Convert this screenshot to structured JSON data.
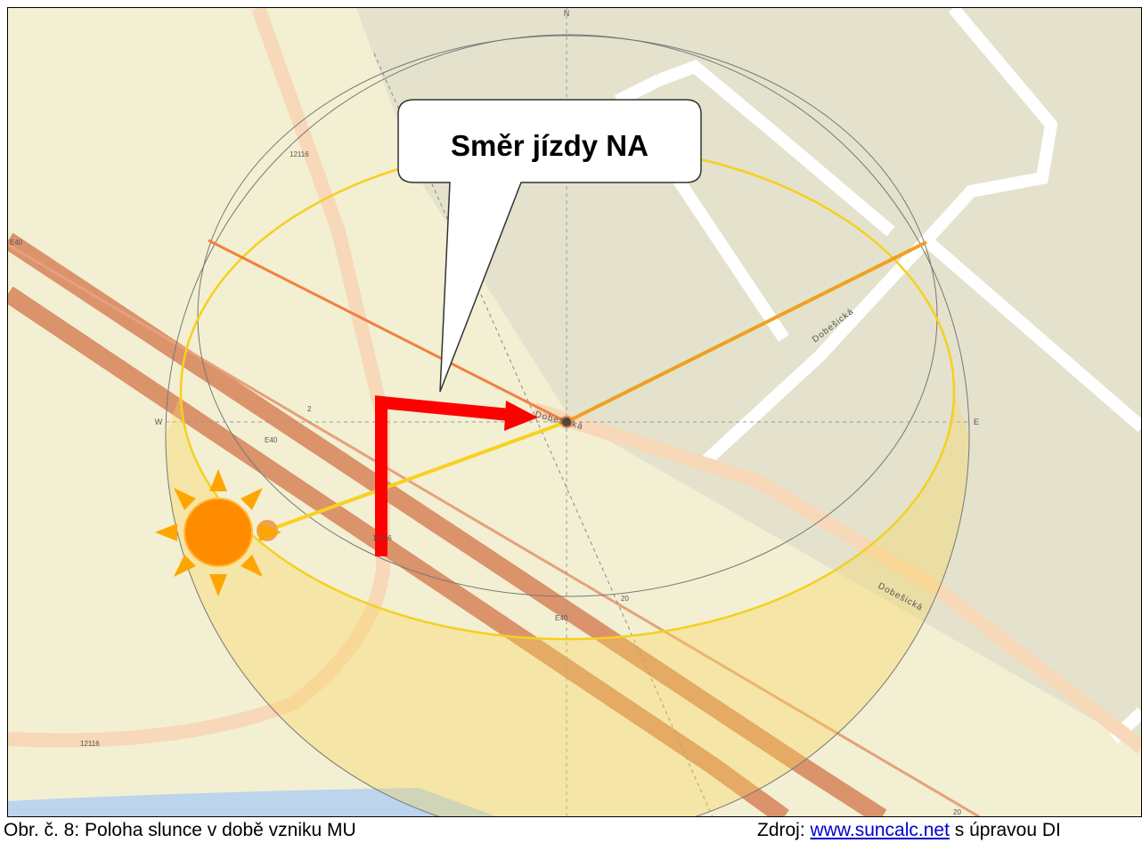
{
  "map": {
    "compass": {
      "n": "N",
      "w": "W",
      "e": "E"
    },
    "callout": "Směr jízdy NA",
    "street_labels": [
      "Dobešická",
      "Dobešická",
      "Dobešická"
    ],
    "road_labels": [
      "12116",
      "12116",
      "12116",
      "E40",
      "E40",
      "E40",
      "2",
      "20",
      "20"
    ]
  },
  "caption": {
    "left": "Obr. č. 8: Poloha slunce v době vzniku MU",
    "right_prefix": "Zdroj:",
    "link": "www.suncalc.net",
    "right_suffix": "s úpravou DI"
  }
}
